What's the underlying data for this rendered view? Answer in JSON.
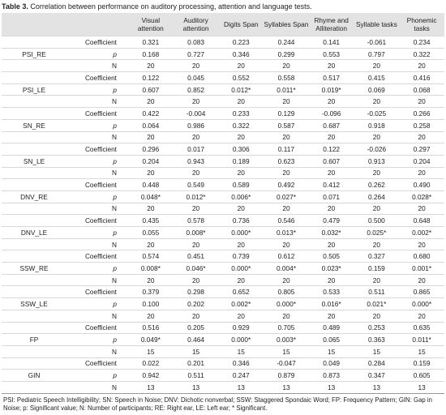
{
  "caption": {
    "label": "Table 3.",
    "text": "Correlation between performance on auditory processing, attention and language tests."
  },
  "table": {
    "columns": [
      "Visual attention",
      "Auditory attention",
      "Digits Span",
      "Syllables Span",
      "Rhyme and Alliteration",
      "Syllable tasks",
      "Phonemic tasks"
    ],
    "groups": [
      {
        "label": "PSI_RE",
        "rows": [
          {
            "measure": "Coefficient",
            "values": [
              "0.321",
              "0.083",
              "0.223",
              "0.244",
              "0.141",
              "-0.061",
              "0.234"
            ]
          },
          {
            "measure": "p",
            "values": [
              "0.168",
              "0.727",
              "0.346",
              "0.299",
              "0.553",
              "0.797",
              "0.322"
            ]
          },
          {
            "measure": "N",
            "values": [
              "20",
              "20",
              "20",
              "20",
              "20",
              "20",
              "20"
            ]
          }
        ]
      },
      {
        "label": "PSI_LE",
        "rows": [
          {
            "measure": "Coefficient",
            "values": [
              "0.122",
              "0.045",
              "0.552",
              "0.558",
              "0.517",
              "0.415",
              "0.416"
            ]
          },
          {
            "measure": "p",
            "values": [
              "0.607",
              "0.852",
              "0.012*",
              "0.011*",
              "0.019*",
              "0.069",
              "0.068"
            ]
          },
          {
            "measure": "N",
            "values": [
              "20",
              "20",
              "20",
              "20",
              "20",
              "20",
              "20"
            ]
          }
        ]
      },
      {
        "label": "SN_RE",
        "rows": [
          {
            "measure": "Coefficient",
            "values": [
              "0.422",
              "-0.004",
              "0.233",
              "0.129",
              "-0.096",
              "-0.025",
              "0.266"
            ]
          },
          {
            "measure": "p",
            "values": [
              "0.064",
              "0.986",
              "0.322",
              "0.587",
              "0.687",
              "0.918",
              "0.258"
            ]
          },
          {
            "measure": "N",
            "values": [
              "20",
              "20",
              "20",
              "20",
              "20",
              "20",
              "20"
            ]
          }
        ]
      },
      {
        "label": "SN_LE",
        "rows": [
          {
            "measure": "Coefficient",
            "values": [
              "0.296",
              "0.017",
              "0.306",
              "0.117",
              "0.122",
              "-0.026",
              "0.297"
            ]
          },
          {
            "measure": "p",
            "values": [
              "0.204",
              "0.943",
              "0.189",
              "0.623",
              "0.607",
              "0.913",
              "0.204"
            ]
          },
          {
            "measure": "N",
            "values": [
              "20",
              "20",
              "20",
              "20",
              "20",
              "20",
              "20"
            ]
          }
        ]
      },
      {
        "label": "DNV_RE",
        "rows": [
          {
            "measure": "Coefficient",
            "values": [
              "0.448",
              "0.549",
              "0.589",
              "0.492",
              "0.412",
              "0.262",
              "0.490"
            ]
          },
          {
            "measure": "p",
            "values": [
              "0.048*",
              "0.012*",
              "0.006*",
              "0.027*",
              "0.071",
              "0.264",
              "0.028*"
            ]
          },
          {
            "measure": "N",
            "values": [
              "20",
              "20",
              "20",
              "20",
              "20",
              "20",
              "20"
            ]
          }
        ]
      },
      {
        "label": "DNV_LE",
        "rows": [
          {
            "measure": "Coefficient",
            "values": [
              "0.435",
              "0.578",
              "0.736",
              "0.546",
              "0.479",
              "0.500",
              "0.648"
            ]
          },
          {
            "measure": "p",
            "values": [
              "0.055",
              "0.008*",
              "0.000*",
              "0.013*",
              "0.032*",
              "0.025*",
              "0.002*"
            ]
          },
          {
            "measure": "N",
            "values": [
              "20",
              "20",
              "20",
              "20",
              "20",
              "20",
              "20"
            ]
          }
        ]
      },
      {
        "label": "SSW_RE",
        "rows": [
          {
            "measure": "Coefficient",
            "values": [
              "0.574",
              "0.451",
              "0.739",
              "0.612",
              "0.505",
              "0.327",
              "0.680"
            ]
          },
          {
            "measure": "p",
            "values": [
              "0.008*",
              "0.046*",
              "0.000*",
              "0.004*",
              "0.023*",
              "0.159",
              "0.001*"
            ]
          },
          {
            "measure": "N",
            "values": [
              "20",
              "20",
              "20",
              "20",
              "20",
              "20",
              "20"
            ]
          }
        ]
      },
      {
        "label": "SSW_LE",
        "rows": [
          {
            "measure": "Coefficient",
            "values": [
              "0.379",
              "0.298",
              "0.652",
              "0.805",
              "0.533",
              "0.511",
              "0.865"
            ]
          },
          {
            "measure": "p",
            "values": [
              "0.100",
              "0.202",
              "0.002*",
              "0.000*",
              "0.016*",
              "0.021*",
              "0.000*"
            ]
          },
          {
            "measure": "N",
            "values": [
              "20",
              "20",
              "20",
              "20",
              "20",
              "20",
              "20"
            ]
          }
        ]
      },
      {
        "label": "FP",
        "rows": [
          {
            "measure": "Coefficient",
            "values": [
              "0.516",
              "0.205",
              "0.929",
              "0.705",
              "0.489",
              "0.253",
              "0.635"
            ]
          },
          {
            "measure": "p",
            "values": [
              "0.049*",
              "0.464",
              "0.000*",
              "0.003*",
              "0.065",
              "0.363",
              "0.011*"
            ]
          },
          {
            "measure": "N",
            "values": [
              "15",
              "15",
              "15",
              "15",
              "15",
              "15",
              "15"
            ]
          }
        ]
      },
      {
        "label": "GIN",
        "rows": [
          {
            "measure": "Coefficient",
            "values": [
              "0.022",
              "0.201",
              "0.346",
              "-0.047",
              "0.049",
              "0.284",
              "0.159"
            ]
          },
          {
            "measure": "p",
            "values": [
              "0.942",
              "0.511",
              "0.247",
              "0.879",
              "0.873",
              "0.347",
              "0.605"
            ]
          },
          {
            "measure": "N",
            "values": [
              "13",
              "13",
              "13",
              "13",
              "13",
              "13",
              "13"
            ]
          }
        ]
      }
    ]
  },
  "footnote": "PSI: Pediatric Speech Intelligibility; SN: Speech in Noise; DNV: Dichotic nonverbal; SSW: Staggered Spondaic Word; FP: Frequency Pattern; GIN: Gap in Noise; p: Significant value; N: Number of participants; RE: Right ear, LE: Left ear; * Significant."
}
